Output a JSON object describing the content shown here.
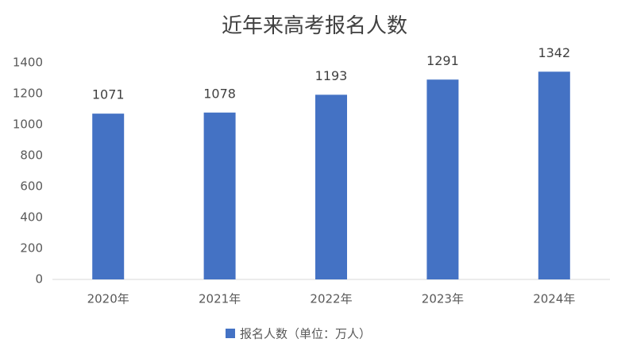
{
  "chart_data": {
    "type": "bar",
    "title": "近年来高考报名人数",
    "categories": [
      "2020年",
      "2021年",
      "2022年",
      "2023年",
      "2024年"
    ],
    "series": [
      {
        "name": "报名人数（单位：万人）",
        "color": "#4472c4",
        "values": [
          1071,
          1078,
          1193,
          1291,
          1342
        ]
      }
    ],
    "ylim": [
      0,
      1400
    ],
    "yticks": [
      0,
      200,
      400,
      600,
      800,
      1000,
      1200,
      1400
    ],
    "grid": false,
    "legend": "bottom"
  }
}
